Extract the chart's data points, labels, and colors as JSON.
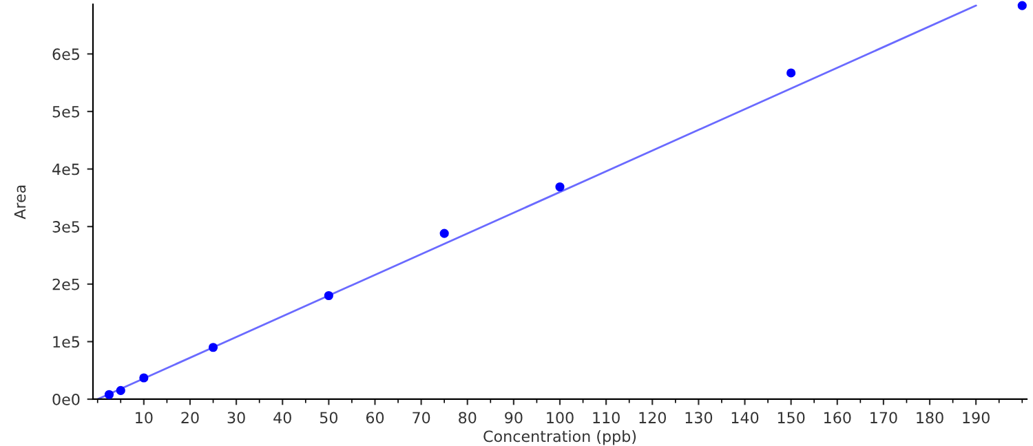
{
  "chart_data": {
    "type": "scatter",
    "xlabel": "Concentration (ppb)",
    "ylabel": "Area",
    "xlim": [
      -1,
      201
    ],
    "ylim": [
      0,
      686000
    ],
    "xticks": [
      10,
      20,
      30,
      40,
      50,
      60,
      70,
      80,
      90,
      100,
      110,
      120,
      130,
      140,
      150,
      160,
      170,
      180,
      190
    ],
    "yticks": [
      {
        "value": 0,
        "label": "0e0"
      },
      {
        "value": 100000,
        "label": "1e5"
      },
      {
        "value": 200000,
        "label": "2e5"
      },
      {
        "value": 300000,
        "label": "3e5"
      },
      {
        "value": 400000,
        "label": "4e5"
      },
      {
        "value": 500000,
        "label": "5e5"
      },
      {
        "value": 600000,
        "label": "6e5"
      }
    ],
    "grid": false,
    "legend": false,
    "marker": "circle",
    "series": [
      {
        "type": "line",
        "marker": "none",
        "color": "#6a6aff",
        "x": [
          0,
          190
        ],
        "values": [
          0,
          684000
        ]
      },
      {
        "color": "#0000ff",
        "x": [
          2.5,
          5,
          10,
          25,
          50,
          75,
          100,
          150,
          200
        ],
        "values": [
          8000,
          15000,
          37000,
          90000,
          180000,
          288000,
          369000,
          567000,
          684000
        ]
      }
    ]
  }
}
